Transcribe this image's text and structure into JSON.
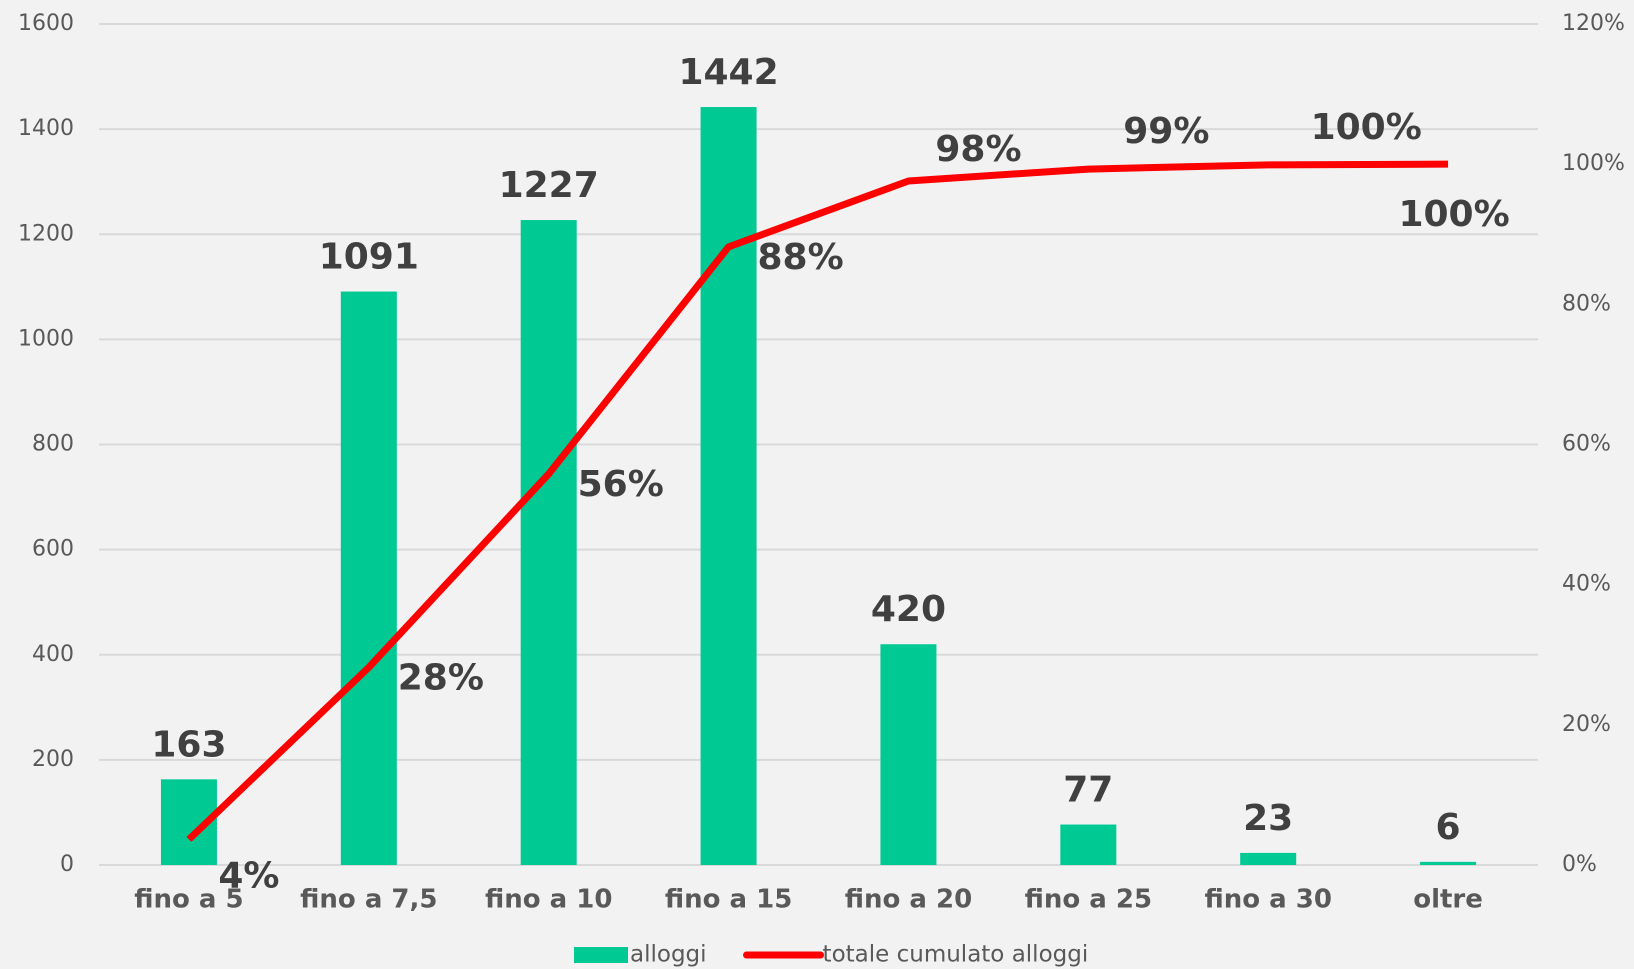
{
  "chart_data": {
    "type": "bar",
    "categories": [
      "fino a 5",
      "fino a 7,5",
      "fino a 10",
      "fino a 15",
      "fino a 20",
      "fino a 25",
      "fino a 30",
      "oltre"
    ],
    "series": [
      {
        "name": "alloggi",
        "color": "#00c994",
        "type": "bar",
        "values": [
          163,
          1091,
          1227,
          1442,
          420,
          77,
          23,
          6
        ]
      },
      {
        "name": "totale cumulato alloggi",
        "color": "#ff0000",
        "type": "line",
        "axis": "y2",
        "values": [
          3.66,
          28.2,
          55.8,
          88.2,
          97.6,
          99.3,
          99.9,
          100
        ],
        "value_labels": [
          "4%",
          "28%",
          "56%",
          "88%",
          "98%",
          "99%",
          "100%",
          "100%"
        ]
      }
    ],
    "ylim": [
      0,
      1600
    ],
    "yticks": [
      0,
      200,
      400,
      600,
      800,
      1000,
      1200,
      1400,
      1600
    ],
    "y2lim": [
      0,
      120
    ],
    "y2ticks": [
      {
        "value": 0,
        "label": "0%"
      },
      {
        "value": 20,
        "label": "20%"
      },
      {
        "value": 40,
        "label": "40%"
      },
      {
        "value": 60,
        "label": "60%"
      },
      {
        "value": 80,
        "label": "80%"
      },
      {
        "value": 100,
        "label": "100%"
      },
      {
        "value": 120,
        "label": "120%"
      }
    ],
    "grid": true,
    "legend": "bottom"
  }
}
